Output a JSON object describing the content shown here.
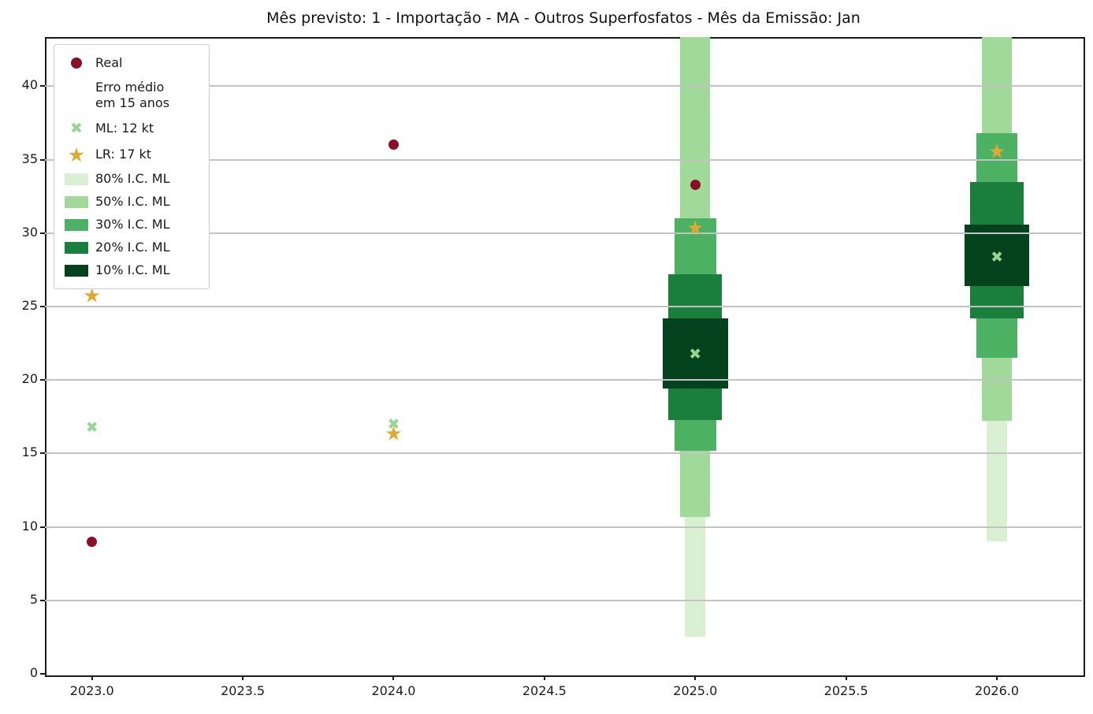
{
  "title": "Mês previsto: 1 - Importação - MA - Outros Superfosfatos - Mês da Emissão: Jan",
  "colors": {
    "real": "#8b0e28",
    "ml": "#97d492",
    "lr": "#dcaa35",
    "ci_80": "#d9f0d3",
    "ci_50": "#a1d99b",
    "ci_30": "#4cb163",
    "ci_20": "#1a7f3c",
    "ci_10": "#04421d",
    "gridline": "#c3c3c3",
    "axis": "#1b1b1b"
  },
  "chart_data": {
    "type": "scatter",
    "title": "Mês previsto: 1 - Importação - MA - Outros Superfosfatos - Mês da Emissão: Jan",
    "xlabel": "",
    "ylabel": "",
    "xlim": [
      2022.844,
      2026.282
    ],
    "ylim": [
      0,
      43.35
    ],
    "grid": "horizontal",
    "x_ticks": [
      2023.0,
      2023.5,
      2024.0,
      2024.5,
      2025.0,
      2025.5,
      2026.0
    ],
    "x_tick_labels": [
      "2023.0",
      "2023.5",
      "2024.0",
      "2024.5",
      "2025.0",
      "2025.5",
      "2026.0"
    ],
    "y_ticks": [
      0,
      5,
      10,
      15,
      20,
      25,
      30,
      35,
      40
    ],
    "y_tick_labels": [
      "0",
      "5",
      "10",
      "15",
      "20",
      "25",
      "30",
      "35",
      "40"
    ],
    "legend_position": "upper-left",
    "series": [
      {
        "name": "Real",
        "marker": "dot",
        "color": "#8b0e28",
        "points": [
          [
            2023,
            9.0
          ],
          [
            2024,
            36.0
          ],
          [
            2025,
            33.3
          ]
        ]
      },
      {
        "name": "ML",
        "marker": "x",
        "color": "#97d492",
        "points": [
          [
            2023,
            16.7
          ],
          [
            2024,
            16.9
          ],
          [
            2025,
            21.7
          ],
          [
            2026,
            28.3
          ]
        ]
      },
      {
        "name": "LR",
        "marker": "star",
        "color": "#dcaa35",
        "points": [
          [
            2023,
            25.7
          ],
          [
            2024,
            16.3
          ],
          [
            2025,
            30.3
          ],
          [
            2026,
            35.5
          ]
        ]
      }
    ],
    "ci_bands": [
      {
        "level": "80%",
        "color": "#d9f0d3",
        "bar_width_years": 0.068,
        "intervals": [
          [
            2025,
            2.5,
            44
          ],
          [
            2026,
            9.0,
            44
          ]
        ]
      },
      {
        "level": "50%",
        "color": "#a1d99b",
        "bar_width_years": 0.1,
        "intervals": [
          [
            2025,
            10.7,
            44
          ],
          [
            2026,
            17.2,
            44
          ]
        ]
      },
      {
        "level": "30%",
        "color": "#4cb163",
        "bar_width_years": 0.138,
        "intervals": [
          [
            2025,
            15.2,
            31.0
          ],
          [
            2026,
            21.5,
            36.8
          ]
        ]
      },
      {
        "level": "20%",
        "color": "#1a7f3c",
        "bar_width_years": 0.178,
        "intervals": [
          [
            2025,
            17.3,
            27.2
          ],
          [
            2026,
            24.2,
            33.5
          ]
        ]
      },
      {
        "level": "10%",
        "color": "#04421d",
        "bar_width_years": 0.216,
        "intervals": [
          [
            2025,
            19.4,
            24.2
          ],
          [
            2026,
            26.4,
            30.6
          ]
        ]
      }
    ],
    "legend": {
      "items": [
        {
          "marker": "dot",
          "color": "#8b0e28",
          "label": "Real"
        },
        {
          "marker": "none",
          "color": "",
          "label": "Erro médio\nem 15 anos"
        },
        {
          "marker": "x",
          "color": "#97d492",
          "label": "ML: 12 kt"
        },
        {
          "marker": "star",
          "color": "#dcaa35",
          "label": "LR: 17 kt"
        },
        {
          "marker": "patch",
          "color": "#d9f0d3",
          "label": "80% I.C. ML"
        },
        {
          "marker": "patch",
          "color": "#a1d99b",
          "label": "50% I.C. ML"
        },
        {
          "marker": "patch",
          "color": "#4cb163",
          "label": "30% I.C. ML"
        },
        {
          "marker": "patch",
          "color": "#1a7f3c",
          "label": "20% I.C. ML"
        },
        {
          "marker": "patch",
          "color": "#04421d",
          "label": "10% I.C. ML"
        }
      ]
    }
  }
}
